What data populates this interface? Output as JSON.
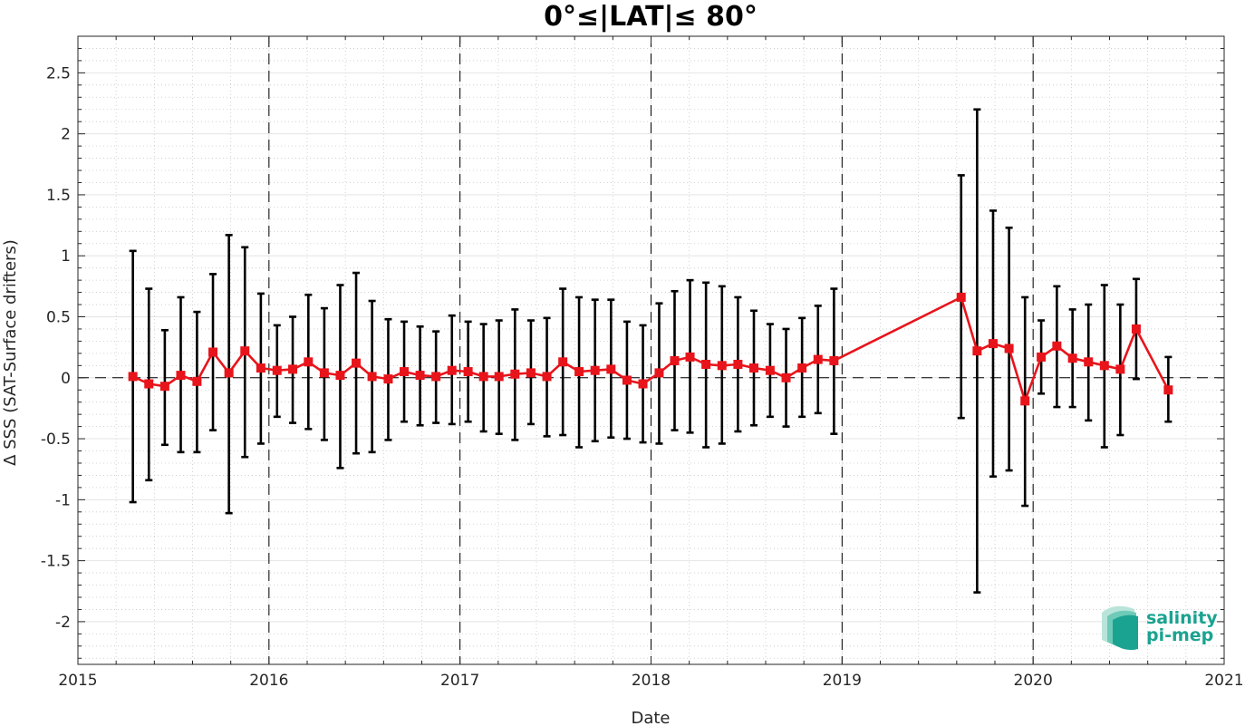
{
  "chart_data": {
    "type": "line",
    "title": "0°≤|LAT|≤ 80°",
    "xlabel": "Date",
    "ylabel": "Δ SSS (SAT-Surface drifters)",
    "xlim": [
      "2015-01-01",
      "2021-01-01"
    ],
    "ylim": [
      -2.35,
      2.8
    ],
    "x_ticks": [
      "2015",
      "2016",
      "2017",
      "2018",
      "2019",
      "2020",
      "2021"
    ],
    "y_ticks": [
      2.5,
      2,
      1.5,
      1,
      0.5,
      0,
      -0.5,
      -1,
      -1.5,
      -2
    ],
    "y_tick_labels": [
      "2.5",
      "2",
      "1.5",
      "1",
      "0.5",
      "0",
      "-0.5",
      "-1",
      "-1.5",
      "-2"
    ],
    "grid": true,
    "minor_grid": true,
    "year_dividers": [
      "2016",
      "2017",
      "2018",
      "2019",
      "2020"
    ],
    "zero_line": true,
    "series": [
      {
        "color": "#e8141b",
        "error_color": "#000000",
        "points": [
          {
            "date": "2015-04",
            "mean": 0.01,
            "upper": 1.04,
            "lower": -1.02
          },
          {
            "date": "2015-05",
            "mean": -0.05,
            "upper": 0.73,
            "lower": -0.84
          },
          {
            "date": "2015-06",
            "mean": -0.07,
            "upper": 0.39,
            "lower": -0.55
          },
          {
            "date": "2015-07",
            "mean": 0.02,
            "upper": 0.66,
            "lower": -0.61
          },
          {
            "date": "2015-08",
            "mean": -0.03,
            "upper": 0.54,
            "lower": -0.61
          },
          {
            "date": "2015-09",
            "mean": 0.21,
            "upper": 0.85,
            "lower": -0.43
          },
          {
            "date": "2015-10",
            "mean": 0.04,
            "upper": 1.17,
            "lower": -1.11
          },
          {
            "date": "2015-11",
            "mean": 0.22,
            "upper": 1.07,
            "lower": -0.65
          },
          {
            "date": "2015-12",
            "mean": 0.08,
            "upper": 0.69,
            "lower": -0.54
          },
          {
            "date": "2016-01",
            "mean": 0.06,
            "upper": 0.43,
            "lower": -0.32
          },
          {
            "date": "2016-02",
            "mean": 0.07,
            "upper": 0.5,
            "lower": -0.37
          },
          {
            "date": "2016-03",
            "mean": 0.13,
            "upper": 0.68,
            "lower": -0.42
          },
          {
            "date": "2016-04",
            "mean": 0.04,
            "upper": 0.57,
            "lower": -0.51
          },
          {
            "date": "2016-05",
            "mean": 0.02,
            "upper": 0.76,
            "lower": -0.74
          },
          {
            "date": "2016-06",
            "mean": 0.12,
            "upper": 0.86,
            "lower": -0.62
          },
          {
            "date": "2016-07",
            "mean": 0.01,
            "upper": 0.63,
            "lower": -0.61
          },
          {
            "date": "2016-08",
            "mean": -0.01,
            "upper": 0.48,
            "lower": -0.51
          },
          {
            "date": "2016-09",
            "mean": 0.05,
            "upper": 0.46,
            "lower": -0.36
          },
          {
            "date": "2016-10",
            "mean": 0.02,
            "upper": 0.42,
            "lower": -0.39
          },
          {
            "date": "2016-11",
            "mean": 0.01,
            "upper": 0.38,
            "lower": -0.37
          },
          {
            "date": "2016-12",
            "mean": 0.06,
            "upper": 0.51,
            "lower": -0.38
          },
          {
            "date": "2017-01",
            "mean": 0.05,
            "upper": 0.46,
            "lower": -0.36
          },
          {
            "date": "2017-02",
            "mean": 0.01,
            "upper": 0.44,
            "lower": -0.44
          },
          {
            "date": "2017-03",
            "mean": 0.01,
            "upper": 0.47,
            "lower": -0.46
          },
          {
            "date": "2017-04",
            "mean": 0.03,
            "upper": 0.56,
            "lower": -0.51
          },
          {
            "date": "2017-05",
            "mean": 0.04,
            "upper": 0.47,
            "lower": -0.38
          },
          {
            "date": "2017-06",
            "mean": 0.01,
            "upper": 0.49,
            "lower": -0.48
          },
          {
            "date": "2017-07",
            "mean": 0.13,
            "upper": 0.73,
            "lower": -0.47
          },
          {
            "date": "2017-08",
            "mean": 0.05,
            "upper": 0.66,
            "lower": -0.57
          },
          {
            "date": "2017-09",
            "mean": 0.06,
            "upper": 0.64,
            "lower": -0.52
          },
          {
            "date": "2017-10",
            "mean": 0.07,
            "upper": 0.64,
            "lower": -0.49
          },
          {
            "date": "2017-11",
            "mean": -0.02,
            "upper": 0.46,
            "lower": -0.5
          },
          {
            "date": "2017-12",
            "mean": -0.05,
            "upper": 0.43,
            "lower": -0.53
          },
          {
            "date": "2018-01",
            "mean": 0.04,
            "upper": 0.61,
            "lower": -0.54
          },
          {
            "date": "2018-02",
            "mean": 0.14,
            "upper": 0.71,
            "lower": -0.43
          },
          {
            "date": "2018-03",
            "mean": 0.17,
            "upper": 0.8,
            "lower": -0.45
          },
          {
            "date": "2018-04",
            "mean": 0.11,
            "upper": 0.78,
            "lower": -0.57
          },
          {
            "date": "2018-05",
            "mean": 0.1,
            "upper": 0.75,
            "lower": -0.54
          },
          {
            "date": "2018-06",
            "mean": 0.11,
            "upper": 0.66,
            "lower": -0.44
          },
          {
            "date": "2018-07",
            "mean": 0.08,
            "upper": 0.55,
            "lower": -0.39
          },
          {
            "date": "2018-08",
            "mean": 0.06,
            "upper": 0.44,
            "lower": -0.32
          },
          {
            "date": "2018-09",
            "mean": 0.0,
            "upper": 0.4,
            "lower": -0.4
          },
          {
            "date": "2018-10",
            "mean": 0.08,
            "upper": 0.49,
            "lower": -0.32
          },
          {
            "date": "2018-11",
            "mean": 0.15,
            "upper": 0.59,
            "lower": -0.29
          },
          {
            "date": "2018-12",
            "mean": 0.14,
            "upper": 0.73,
            "lower": -0.46
          },
          {
            "date": "2019-08",
            "mean": 0.66,
            "upper": 1.66,
            "lower": -0.33
          },
          {
            "date": "2019-09",
            "mean": 0.22,
            "upper": 2.2,
            "lower": -1.76
          },
          {
            "date": "2019-10",
            "mean": 0.28,
            "upper": 1.37,
            "lower": -0.81
          },
          {
            "date": "2019-11",
            "mean": 0.24,
            "upper": 1.23,
            "lower": -0.76
          },
          {
            "date": "2019-12",
            "mean": -0.19,
            "upper": 0.66,
            "lower": -1.05
          },
          {
            "date": "2020-01",
            "mean": 0.17,
            "upper": 0.47,
            "lower": -0.13
          },
          {
            "date": "2020-02",
            "mean": 0.26,
            "upper": 0.75,
            "lower": -0.24
          },
          {
            "date": "2020-03",
            "mean": 0.16,
            "upper": 0.56,
            "lower": -0.24
          },
          {
            "date": "2020-04",
            "mean": 0.13,
            "upper": 0.6,
            "lower": -0.35
          },
          {
            "date": "2020-05",
            "mean": 0.1,
            "upper": 0.76,
            "lower": -0.57
          },
          {
            "date": "2020-06",
            "mean": 0.07,
            "upper": 0.6,
            "lower": -0.47
          },
          {
            "date": "2020-07",
            "mean": 0.4,
            "upper": 0.81,
            "lower": -0.01
          },
          {
            "date": "2020-09",
            "mean": -0.1,
            "upper": 0.17,
            "lower": -0.36
          }
        ]
      }
    ]
  },
  "logo": {
    "line1": "salinity",
    "line2": "pi-mep",
    "colors": [
      "#1aa390",
      "#6fcab8",
      "#b9e4da"
    ]
  }
}
